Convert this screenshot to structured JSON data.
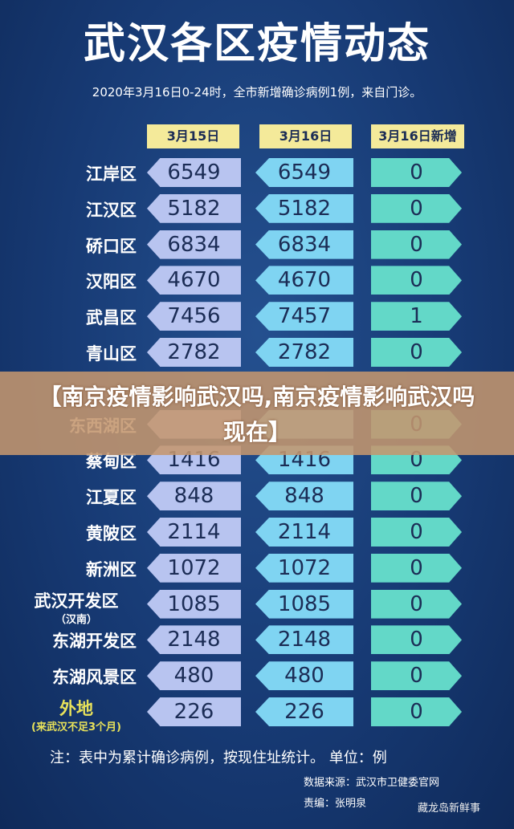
{
  "header": {
    "title": "武汉各区疫情动态",
    "subtitle": "2020年3月16日0-24时，全市新增确诊病例1例，来自门诊。"
  },
  "table": {
    "columns": [
      "3月15日",
      "3月16日",
      "3月16日新增"
    ],
    "rows": [
      {
        "label": "江岸区",
        "mar15": 6549,
        "mar16": 6549,
        "new": 0
      },
      {
        "label": "江汉区",
        "mar15": 5182,
        "mar16": 5182,
        "new": 0
      },
      {
        "label": "硚口区",
        "mar15": 6834,
        "mar16": 6834,
        "new": 0
      },
      {
        "label": "汉阳区",
        "mar15": 4670,
        "mar16": 4670,
        "new": 0
      },
      {
        "label": "武昌区",
        "mar15": 7456,
        "mar16": 7457,
        "new": 1
      },
      {
        "label": "青山区",
        "mar15": 2782,
        "mar16": 2782,
        "new": 0
      },
      {
        "label": "东西湖区",
        "new": 0
      },
      {
        "label": "蔡甸区",
        "mar15": 1416,
        "mar16": 1416,
        "new": 0
      },
      {
        "label": "江夏区",
        "mar15": 848,
        "mar16": 848,
        "new": 0
      },
      {
        "label": "黄陂区",
        "mar15": 2114,
        "mar16": 2114,
        "new": 0
      },
      {
        "label": "新洲区",
        "mar15": 1072,
        "mar16": 1072,
        "new": 0
      },
      {
        "label": "武汉开发区",
        "sub": "（汉南）",
        "mar15": 1085,
        "mar16": 1085,
        "new": 0
      },
      {
        "label": "东湖开发区",
        "mar15": 2148,
        "mar16": 2148,
        "new": 0
      },
      {
        "label": "东湖风景区",
        "mar15": 480,
        "mar16": 480,
        "new": 0
      },
      {
        "label": "外地",
        "sub": "(来武汉不足3个月)",
        "mar15": 226,
        "mar16": 226,
        "new": 0
      }
    ]
  },
  "overlay": {
    "text": "【南京疫情影响武汉吗,南京疫情影响武汉吗现在】"
  },
  "footer": {
    "note": "注：表中为累计确诊病例，按现住址统计。 单位：例",
    "source": "数据来源：武汉市卫健委官网",
    "editor": "责编：张明泉",
    "watermark": "藏龙岛新鲜事"
  }
}
